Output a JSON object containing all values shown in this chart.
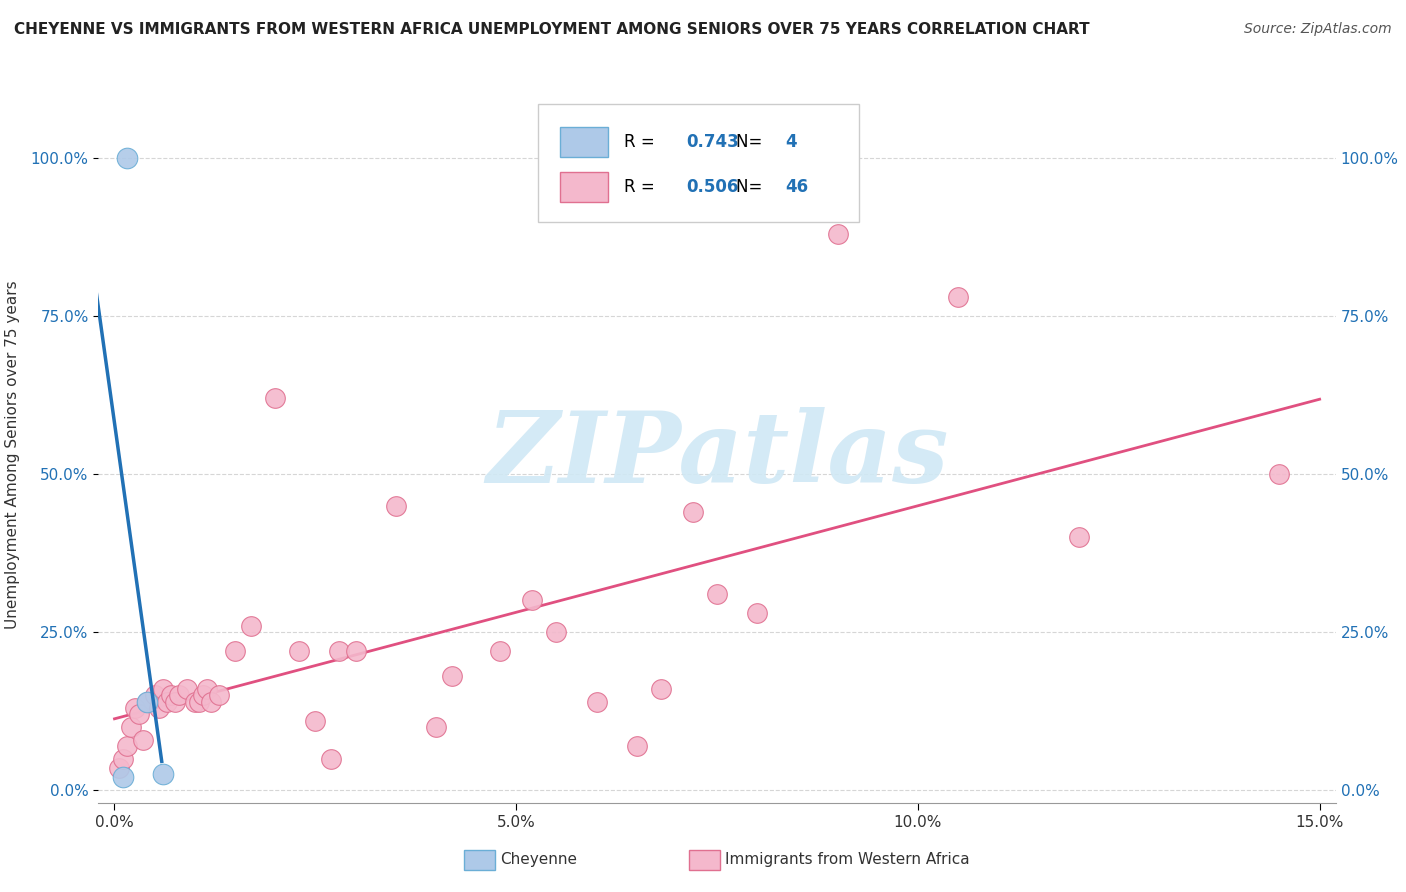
{
  "title": "CHEYENNE VS IMMIGRANTS FROM WESTERN AFRICA UNEMPLOYMENT AMONG SENIORS OVER 75 YEARS CORRELATION CHART",
  "source": "Source: ZipAtlas.com",
  "ylabel": "Unemployment Among Seniors over 75 years",
  "xlim": [
    0.0,
    15.0
  ],
  "ylim": [
    0.0,
    105.0
  ],
  "xticks": [
    0.0,
    5.0,
    10.0,
    15.0
  ],
  "xticklabels": [
    "0.0%",
    "5.0%",
    "10.0%",
    "15.0%"
  ],
  "yticks": [
    0.0,
    25.0,
    50.0,
    75.0,
    100.0
  ],
  "yticklabels": [
    "0.0%",
    "25.0%",
    "50.0%",
    "75.0%",
    "100.0%"
  ],
  "cheyenne_color": "#aec9e8",
  "cheyenne_edge": "#6baed6",
  "immigrants_color": "#f4b8cc",
  "immigrants_edge": "#e07090",
  "cheyenne_R": 0.743,
  "cheyenne_N": 4,
  "immigrants_R": 0.506,
  "immigrants_N": 46,
  "cheyenne_points": [
    [
      0.15,
      100.0
    ],
    [
      0.4,
      14.0
    ],
    [
      0.6,
      2.5
    ],
    [
      0.1,
      2.0
    ]
  ],
  "immigrants_points": [
    [
      0.05,
      3.5
    ],
    [
      0.1,
      5.0
    ],
    [
      0.15,
      7.0
    ],
    [
      0.2,
      10.0
    ],
    [
      0.25,
      13.0
    ],
    [
      0.3,
      12.0
    ],
    [
      0.35,
      8.0
    ],
    [
      0.4,
      14.0
    ],
    [
      0.5,
      15.0
    ],
    [
      0.55,
      13.0
    ],
    [
      0.6,
      16.0
    ],
    [
      0.65,
      14.0
    ],
    [
      0.7,
      15.0
    ],
    [
      0.75,
      14.0
    ],
    [
      0.8,
      15.0
    ],
    [
      0.9,
      16.0
    ],
    [
      1.0,
      14.0
    ],
    [
      1.05,
      14.0
    ],
    [
      1.1,
      15.0
    ],
    [
      1.15,
      16.0
    ],
    [
      1.2,
      14.0
    ],
    [
      1.3,
      15.0
    ],
    [
      1.5,
      22.0
    ],
    [
      1.7,
      26.0
    ],
    [
      2.0,
      62.0
    ],
    [
      2.3,
      22.0
    ],
    [
      2.5,
      11.0
    ],
    [
      2.7,
      5.0
    ],
    [
      2.8,
      22.0
    ],
    [
      3.0,
      22.0
    ],
    [
      3.5,
      45.0
    ],
    [
      4.0,
      10.0
    ],
    [
      4.2,
      18.0
    ],
    [
      4.8,
      22.0
    ],
    [
      5.2,
      30.0
    ],
    [
      5.5,
      25.0
    ],
    [
      6.0,
      14.0
    ],
    [
      6.5,
      7.0
    ],
    [
      6.8,
      16.0
    ],
    [
      7.2,
      44.0
    ],
    [
      7.5,
      31.0
    ],
    [
      8.0,
      28.0
    ],
    [
      9.0,
      88.0
    ],
    [
      10.5,
      78.0
    ],
    [
      12.0,
      40.0
    ],
    [
      14.5,
      50.0
    ]
  ],
  "cheyenne_line_color": "#2171b5",
  "immigrants_line_color": "#e05080",
  "watermark_text": "ZIPatlas",
  "watermark_color": "#d0e8f5",
  "legend_R_color": "#2171b5",
  "background_color": "#ffffff",
  "grid_color": "#cccccc",
  "tick_color": "#2171b5"
}
